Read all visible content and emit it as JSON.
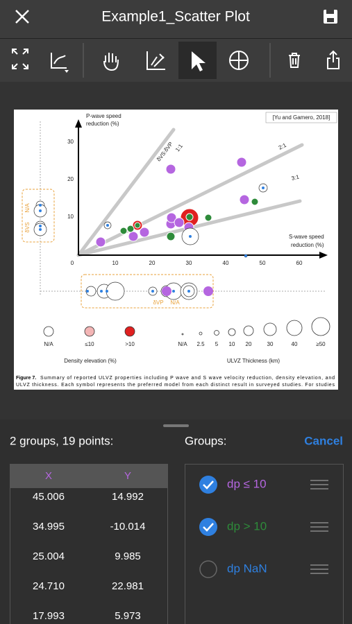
{
  "app_bar": {
    "title": "Example1_Scatter Plot"
  },
  "figure": {
    "citation": "[Yu and Gamero, 2018]",
    "y_axis_label": [
      "P-wave speed",
      "reduction (%)"
    ],
    "x_axis_label": [
      "S-wave speed",
      "reduction (%)"
    ],
    "x_ticks": [
      "0",
      "10",
      "20",
      "30",
      "40",
      "50",
      "60"
    ],
    "y_ticks": [
      "10",
      "20",
      "30"
    ],
    "line_labels": [
      "1:1",
      "2:1",
      "3:1"
    ],
    "ratio_label": "δVS:δVP",
    "left_na": [
      "N/A",
      "δVS"
    ],
    "bottom_na": [
      "δVP",
      "N/A"
    ],
    "density_legend": {
      "title": "Density elevation (%)",
      "labels": [
        "N/A",
        "≤10",
        ">10"
      ]
    },
    "thickness_legend": {
      "title": "ULVZ Thickness (km)",
      "labels": [
        "N/A",
        "2.5",
        "5",
        "10",
        "20",
        "30",
        "40",
        "≥50"
      ]
    },
    "caption_label": "Figure 7.",
    "caption_lines": [
      "Summary of reported ULVZ properties including P wave and S wave velocity reduction, density elevation, and",
      "ULVZ thickness. Each symbol represents the preferred model from each distinct result in surveyed studies. For studies"
    ]
  },
  "panel": {
    "summary": "2 groups, 19 points:",
    "groups_title": "Groups:",
    "cancel": "Cancel",
    "table": {
      "columns": [
        "X",
        "Y"
      ],
      "rows": [
        [
          "45.006",
          "14.992"
        ],
        [
          "34.995",
          "-10.014"
        ],
        [
          "25.004",
          "9.985"
        ],
        [
          "24.710",
          "22.981"
        ],
        [
          "17.993",
          "5.973"
        ]
      ]
    },
    "groups": [
      {
        "label": "dp ≤ 10",
        "checked": true,
        "color": "#b566e0"
      },
      {
        "label": "dp > 10",
        "checked": true,
        "color": "#2e8b3a"
      },
      {
        "label": "dp NaN",
        "checked": false,
        "color": "#2f80e0"
      }
    ]
  }
}
